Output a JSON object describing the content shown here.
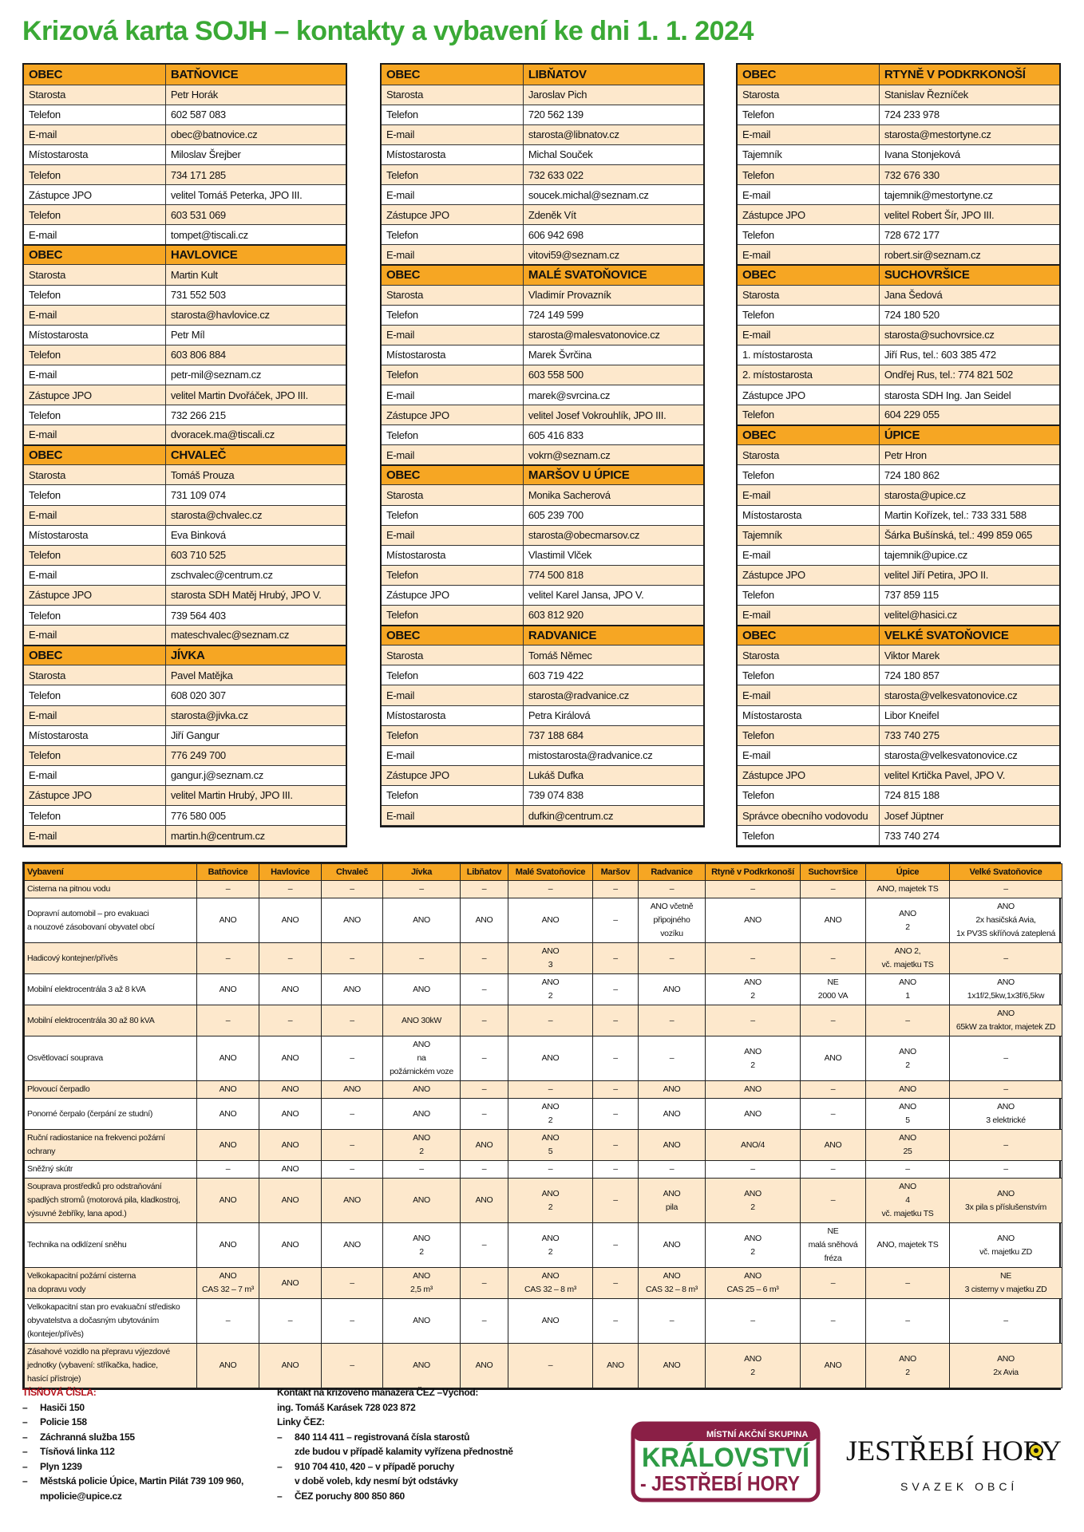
{
  "title": "Krizová karta SOJH – kontakty a vybavení ke dni 1. 1. 2024",
  "colors": {
    "title_green": "#3aa935",
    "header_orange": "#f6a623",
    "row_shade": "#fde8cc",
    "emergency_red": "#b5121b",
    "logo_maroon": "#8a1f46",
    "logo_green": "#2e9b45"
  },
  "contacts": [
    [
      {
        "obec": "OBEC",
        "name": "BATŇOVICE",
        "rows": [
          [
            "Starosta",
            "Petr Horák"
          ],
          [
            "Telefon",
            "602 587 083"
          ],
          [
            "E-mail",
            "obec@batnovice.cz"
          ],
          [
            "Místostarosta",
            "Miloslav Šrejber"
          ],
          [
            "Telefon",
            "734 171 285"
          ],
          [
            "Zástupce JPO",
            "velitel Tomáš Peterka, JPO III."
          ],
          [
            "Telefon",
            "603 531 069"
          ],
          [
            "E-mail",
            "tompet@tiscali.cz"
          ]
        ]
      },
      {
        "obec": "OBEC",
        "name": "HAVLOVICE",
        "rows": [
          [
            "Starosta",
            "Martin Kult"
          ],
          [
            "Telefon",
            "731 552 503"
          ],
          [
            "E-mail",
            "starosta@havlovice.cz"
          ],
          [
            "Místostarosta",
            "Petr Míl"
          ],
          [
            "Telefon",
            "603 806 884"
          ],
          [
            "E-mail",
            "petr-mil@seznam.cz"
          ],
          [
            "Zástupce JPO",
            "velitel Martin Dvořáček, JPO III."
          ],
          [
            "Telefon",
            "732 266 215"
          ],
          [
            "E-mail",
            "dvoracek.ma@tiscali.cz"
          ]
        ]
      },
      {
        "obec": "OBEC",
        "name": "CHVALEČ",
        "rows": [
          [
            "Starosta",
            "Tomáš Prouza"
          ],
          [
            "Telefon",
            "731 109 074"
          ],
          [
            "E-mail",
            "starosta@chvalec.cz"
          ],
          [
            "Místostarosta",
            "Eva Binková"
          ],
          [
            "Telefon",
            "603 710 525"
          ],
          [
            "E-mail",
            "zschvalec@centrum.cz"
          ],
          [
            "Zástupce JPO",
            "starosta SDH Matěj Hrubý, JPO V."
          ],
          [
            "Telefon",
            "739 564 403"
          ],
          [
            "E-mail",
            "mateschvalec@seznam.cz"
          ]
        ]
      },
      {
        "obec": "OBEC",
        "name": "JÍVKA",
        "rows": [
          [
            "Starosta",
            "Pavel Matějka"
          ],
          [
            "Telefon",
            "608 020 307"
          ],
          [
            "E-mail",
            "starosta@jivka.cz"
          ],
          [
            "Místostarosta",
            "Jiří Gangur"
          ],
          [
            "Telefon",
            "776 249 700"
          ],
          [
            "E-mail",
            "gangur.j@seznam.cz"
          ],
          [
            "Zástupce JPO",
            "velitel Martin Hrubý, JPO III."
          ],
          [
            "Telefon",
            "776 580 005"
          ],
          [
            "E-mail",
            "martin.h@centrum.cz"
          ]
        ]
      }
    ],
    [
      {
        "obec": "OBEC",
        "name": "LIBŇATOV",
        "rows": [
          [
            "Starosta",
            "Jaroslav Pich"
          ],
          [
            "Telefon",
            "720 562 139"
          ],
          [
            "E-mail",
            "starosta@libnatov.cz"
          ],
          [
            "Místostarosta",
            "Michal Souček"
          ],
          [
            "Telefon",
            "732 633 022"
          ],
          [
            "E-mail",
            "soucek.michal@seznam.cz"
          ],
          [
            "Zástupce JPO",
            "Zdeněk Vít"
          ],
          [
            "Telefon",
            "606 942 698"
          ],
          [
            "E-mail",
            "vitovi59@seznam.cz"
          ]
        ]
      },
      {
        "obec": "OBEC",
        "name": "MALÉ SVATOŇOVICE",
        "rows": [
          [
            "Starosta",
            "Vladimír Provazník"
          ],
          [
            "Telefon",
            "724 149 599"
          ],
          [
            "E-mail",
            "starosta@malesvatonovice.cz"
          ],
          [
            "Místostarosta",
            "Marek Švrčina"
          ],
          [
            "Telefon",
            "603 558 500"
          ],
          [
            "E-mail",
            "marek@svrcina.cz"
          ],
          [
            "Zástupce JPO",
            "velitel Josef Vokrouhlík, JPO III."
          ],
          [
            "Telefon",
            "605 416 833"
          ],
          [
            "E-mail",
            "vokrn@seznam.cz"
          ]
        ]
      },
      {
        "obec": "OBEC",
        "name": "MARŠOV U ÚPICE",
        "rows": [
          [
            "Starosta",
            "Monika Sacherová"
          ],
          [
            "Telefon",
            "605 239 700"
          ],
          [
            "E-mail",
            "starosta@obecmarsov.cz"
          ],
          [
            "Místostarosta",
            "Vlastimil Vlček"
          ],
          [
            "Telefon",
            "774 500 818"
          ],
          [
            "Zástupce JPO",
            "velitel Karel Jansa, JPO V."
          ],
          [
            "Telefon",
            "603 812 920"
          ]
        ]
      },
      {
        "obec": "OBEC",
        "name": "RADVANICE",
        "rows": [
          [
            "Starosta",
            "Tomáš Němec"
          ],
          [
            "Telefon",
            "603 719 422"
          ],
          [
            "E-mail",
            "starosta@radvanice.cz"
          ],
          [
            "Místostarosta",
            "Petra Királová"
          ],
          [
            "Telefon",
            "737 188 684"
          ],
          [
            "E-mail",
            "mistostarosta@radvanice.cz"
          ],
          [
            "Zástupce JPO",
            "Lukáš Dufka"
          ],
          [
            "Telefon",
            "739 074 838"
          ],
          [
            "E-mail",
            "dufkin@centrum.cz"
          ]
        ]
      }
    ],
    [
      {
        "obec": "OBEC",
        "name": "RTYNĚ V PODKRKONOŠÍ",
        "rows": [
          [
            "Starosta",
            "Stanislav Řezníček"
          ],
          [
            "Telefon",
            "724 233 978"
          ],
          [
            "E-mail",
            "starosta@mestortyne.cz"
          ],
          [
            "Tajemník",
            "Ivana Stonjeková"
          ],
          [
            "Telefon",
            "732 676 330"
          ],
          [
            "E-mail",
            "tajemnik@mestortyne.cz"
          ],
          [
            "Zástupce JPO",
            "velitel Robert Šír, JPO III."
          ],
          [
            "Telefon",
            "728 672 177"
          ],
          [
            "E-mail",
            "robert.sir@seznam.cz"
          ]
        ]
      },
      {
        "obec": "OBEC",
        "name": "SUCHOVRŠICE",
        "rows": [
          [
            "Starosta",
            "Jana Šedová"
          ],
          [
            "Telefon",
            "724 180 520"
          ],
          [
            "E-mail",
            "starosta@suchovrsice.cz"
          ],
          [
            "1. místostarosta",
            "Jiří Rus, tel.: 603 385 472"
          ],
          [
            "2. místostarosta",
            "Ondřej Rus, tel.: 774 821 502"
          ],
          [
            "Zástupce JPO",
            "starosta SDH Ing. Jan Seidel"
          ],
          [
            "Telefon",
            "604 229 055"
          ]
        ]
      },
      {
        "obec": "OBEC",
        "name": "ÚPICE",
        "rows": [
          [
            "Starosta",
            "Petr Hron"
          ],
          [
            "Telefon",
            "724 180 862"
          ],
          [
            "E-mail",
            "starosta@upice.cz"
          ],
          [
            "Místostarosta",
            "Martin Kořízek, tel.: 733 331 588"
          ],
          [
            "Tajemník",
            "Šárka Bušínská, tel.: 499 859 065"
          ],
          [
            "E-mail",
            "tajemnik@upice.cz"
          ],
          [
            "Zástupce JPO",
            "velitel Jiří Petira, JPO II."
          ],
          [
            "Telefon",
            "737 859 115"
          ],
          [
            "E-mail",
            "velitel@hasici.cz"
          ]
        ]
      },
      {
        "obec": "OBEC",
        "name": "VELKÉ SVATOŇOVICE",
        "rows": [
          [
            "Starosta",
            "Viktor Marek"
          ],
          [
            "Telefon",
            "724 180 857"
          ],
          [
            "E-mail",
            "starosta@velkesvatonovice.cz"
          ],
          [
            "Místostarosta",
            "Libor Kneifel"
          ],
          [
            "Telefon",
            "733 740 275"
          ],
          [
            "E-mail",
            "starosta@velkesvatonovice.cz"
          ],
          [
            "Zástupce JPO",
            "velitel Krtička Pavel, JPO V."
          ],
          [
            "Telefon",
            "724 815 188"
          ],
          [
            "Správce obecního vodovodu",
            "Josef Jüptner"
          ],
          [
            "Telefon",
            "733 740 274"
          ]
        ]
      }
    ]
  ],
  "equipment": {
    "columns": [
      "Vybavení",
      "Batňovice",
      "Havlovice",
      "Chvaleč",
      "Jívka",
      "Libňatov",
      "Malé Svatoňovice",
      "Maršov",
      "Radvanice",
      "Rtyně v Podkrkonoší",
      "Suchovršice",
      "Úpice",
      "Velké Svatoňovice"
    ],
    "rows": [
      {
        "label": "Cisterna na pitnou vodu",
        "values": [
          "–",
          "–",
          "–",
          "–",
          "–",
          "–",
          "–",
          "–",
          "–",
          "–",
          "ANO, majetek TS",
          "–"
        ]
      },
      {
        "label": "Dopravní automobil – pro evakuaci\na nouzové zásobovaní obyvatel obcí",
        "values": [
          "ANO",
          "ANO",
          "ANO",
          "ANO",
          "ANO",
          "ANO",
          "–",
          "ANO včetně\npřipojného\nvozíku",
          "ANO",
          "ANO",
          "ANO\n2",
          "ANO\n2x hasičská Avia,\n1x PV3S skříňová zateplená"
        ]
      },
      {
        "label": "Hadicový kontejner/přívěs",
        "values": [
          "–",
          "–",
          "–",
          "–",
          "–",
          "ANO\n3",
          "–",
          "–",
          "–",
          "–",
          "ANO 2,\nvč. majetku TS",
          "–"
        ]
      },
      {
        "label": "Mobilní elektrocentrála 3 až 8 kVA",
        "values": [
          "ANO",
          "ANO",
          "ANO",
          "ANO",
          "–",
          "ANO\n2",
          "–",
          "ANO",
          "ANO\n2",
          "NE\n2000 VA",
          "ANO\n1",
          "ANO\n1x1f/2,5kw,1x3f/6,5kw"
        ]
      },
      {
        "label": "Mobilní elektrocentrála 30 až 80 kVA",
        "values": [
          "–",
          "–",
          "–",
          "ANO 30kW",
          "–",
          "–",
          "–",
          "–",
          "–",
          "–",
          "–",
          "ANO\n65kW za traktor, majetek ZD"
        ]
      },
      {
        "label": "Osvětlovací souprava",
        "values": [
          "ANO",
          "ANO",
          "–",
          "ANO\nna\npožárnickém voze",
          "–",
          "ANO",
          "–",
          "–",
          "ANO\n2",
          "ANO",
          "ANO\n2",
          "–"
        ]
      },
      {
        "label": "Plovoucí čerpadlo",
        "values": [
          "ANO",
          "ANO",
          "ANO",
          "ANO",
          "–",
          "–",
          "–",
          "ANO",
          "ANO",
          "–",
          "ANO",
          "–"
        ]
      },
      {
        "label": "Ponorné čerpalo (čerpání ze studní)",
        "values": [
          "ANO",
          "ANO",
          "–",
          "ANO",
          "–",
          "ANO\n2",
          "–",
          "ANO",
          "ANO",
          "–",
          "ANO\n5",
          "ANO\n3 elektrické"
        ]
      },
      {
        "label": "Ruční radiostanice na frekvenci požární\nochrany",
        "values": [
          "ANO",
          "ANO",
          "–",
          "ANO\n2",
          "ANO",
          "ANO\n5",
          "–",
          "ANO",
          "ANO/4",
          "ANO",
          "ANO\n25",
          "–"
        ]
      },
      {
        "label": "Sněžný skútr",
        "values": [
          "–",
          "ANO",
          "–",
          "–",
          "–",
          "–",
          "–",
          "–",
          "–",
          "–",
          "–",
          "–"
        ]
      },
      {
        "label": "Souprava prostředků pro odstraňování\nspadlých stromů (motorová pila, kladkostroj,\nvýsuvné žebříky, lana apod.)",
        "values": [
          "ANO",
          "ANO",
          "ANO",
          "ANO",
          "ANO",
          "ANO\n2",
          "–",
          "ANO\npila",
          "ANO\n2",
          "–",
          "ANO\n4\nvč. majetku TS",
          "ANO\n3x pila s příslušenstvím"
        ]
      },
      {
        "label": "Technika na odklízení sněhu",
        "values": [
          "ANO",
          "ANO",
          "ANO",
          "ANO\n2",
          "–",
          "ANO\n2",
          "–",
          "ANO",
          "ANO\n2",
          "NE\nmalá sněhová\nfréza",
          "ANO, majetek TS",
          "ANO\nvč. majetku ZD"
        ]
      },
      {
        "label": "Velkokapacitní požární cisterna\nna dopravu vody",
        "values": [
          "ANO\nCAS 32 – 7 m³",
          "ANO",
          "–",
          "ANO\n2,5 m³",
          "–",
          "ANO\nCAS 32 – 8 m³",
          "–",
          "ANO\nCAS 32 – 8 m³",
          "ANO\nCAS 25 – 6 m³",
          "–",
          "–",
          "NE\n3 cisterny v majetku ZD"
        ]
      },
      {
        "label": "Velkokapacitní stan pro evakuační středisko\nobyvatelstva a dočasným ubytováním\n(kontejer/přívěs)",
        "values": [
          "–",
          "–",
          "–",
          "ANO",
          "–",
          "ANO",
          "–",
          "–",
          "–",
          "–",
          "–",
          "–"
        ]
      },
      {
        "label": "Zásahové vozidlo na přepravu výjezdové\njednotky (vybavení: stříkačka, hadice,\nhasící přístroje)",
        "values": [
          "ANO",
          "ANO",
          "–",
          "ANO",
          "ANO",
          "–",
          "ANO",
          "ANO",
          "ANO\n2",
          "ANO",
          "ANO\n2",
          "ANO\n2x Avia"
        ]
      }
    ]
  },
  "footer": {
    "emergency_title": "TÍSŇOVÁ ČÍSLA:",
    "emergency_items": [
      "Hasiči 150",
      "Policie 158",
      "Záchranná služba 155",
      "Tísňová linka 112",
      "Plyn 1239",
      "Městská policie Úpice, Martin Pilát 739 109 960,\nmpolicie@upice.cz"
    ],
    "cez_title": "Kontakt na krizového manažera ČEZ –Východ:",
    "cez_manager": "ing. Tomáš Karásek 728 023 872",
    "cez_lines_title": "Linky ČEZ:",
    "cez_items": [
      "840 114 411 – registrovaná čísla starostů\nzde budou v případě kalamity vyřízena přednostně",
      "910 704 410, 420 – v případě poruchy\nv době voleb, kdy nesmí být odstávky",
      "ČEZ poruchy 800 850 860"
    ],
    "dash": "–"
  },
  "logos": {
    "mas": {
      "top": "MÍSTNÍ AKČNÍ SKUPINA",
      "line1": "KRÁLOVSTVÍ",
      "line2": "- JESTŘEBÍ HORY"
    },
    "svazek": {
      "name": "JESTŘEBÍ HORY",
      "sub": "SVAZEK OBCÍ"
    }
  }
}
